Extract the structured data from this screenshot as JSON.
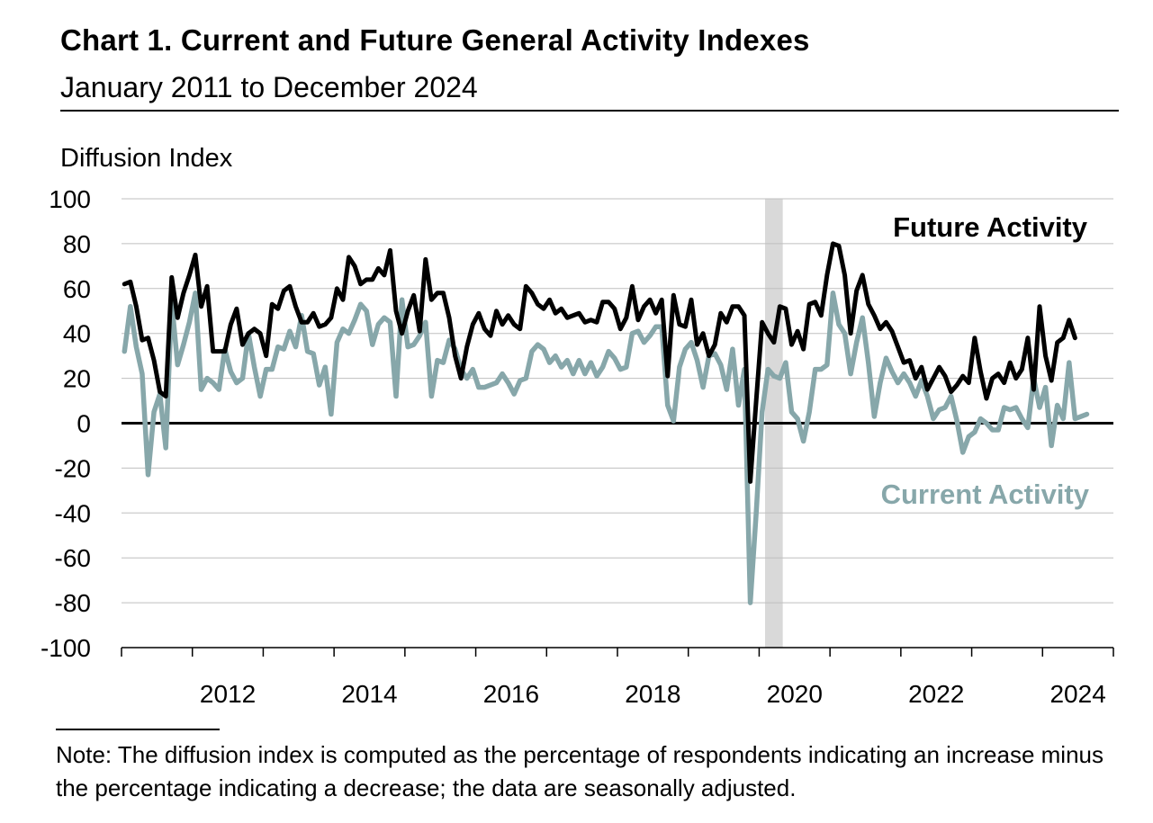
{
  "title": "Chart 1. Current and Future General Activity Indexes",
  "subtitle": "January 2011 to December 2024",
  "note": "Note: The diffusion index is computed as the percentage of respondents indicating an increase minus the percentage indicating a decrease; the data are seasonally adjusted.",
  "colors": {
    "future": "#000000",
    "current": "#87a7aa",
    "recession": "#d9d9d9",
    "zero_line": "#000000"
  },
  "chart_data": {
    "type": "line",
    "ylabel": "Diffusion Index",
    "ylim": [
      -100,
      100
    ],
    "y_ticks": [
      "100",
      "80",
      "60",
      "40",
      "20",
      "0",
      "-20",
      "-40",
      "-60",
      "-80",
      "-100"
    ],
    "x_start": "2011-01",
    "x_end": "2024-12",
    "x_tick_labels": [
      "2012",
      "2014",
      "2016",
      "2018",
      "2020",
      "2022",
      "2024"
    ],
    "recession_shading": {
      "start": "2020-02",
      "end": "2020-04"
    },
    "zero_line": true,
    "series": [
      {
        "name": "Future Activity",
        "label": "Future Activity",
        "color": "#000000",
        "values": [
          62,
          63,
          52,
          37,
          38,
          28,
          14,
          12,
          65,
          47,
          58,
          66,
          75,
          52,
          61,
          32,
          32,
          32,
          44,
          51,
          35,
          40,
          42,
          40,
          30,
          53,
          51,
          59,
          61,
          52,
          45,
          45,
          49,
          43,
          44,
          47,
          60,
          55,
          74,
          70,
          62,
          64,
          64,
          69,
          66,
          77,
          50,
          40,
          50,
          57,
          41,
          73,
          55,
          58,
          58,
          47,
          30,
          20,
          34,
          44,
          49,
          42,
          39,
          50,
          44,
          48,
          44,
          42,
          61,
          58,
          53,
          51,
          55,
          49,
          51,
          47,
          48,
          49,
          45,
          46,
          45,
          54,
          54,
          51,
          42,
          47,
          61,
          46,
          52,
          55,
          49,
          55,
          21,
          57,
          44,
          43,
          55,
          35,
          40,
          30,
          35,
          49,
          45,
          52,
          52,
          48,
          -26,
          10,
          45,
          40,
          36,
          52,
          51,
          35,
          41,
          33,
          53,
          54,
          48,
          66,
          80,
          79,
          66,
          40,
          59,
          66,
          53,
          48,
          42,
          45,
          41,
          34,
          27,
          28,
          20,
          25,
          15,
          20,
          25,
          21,
          14,
          17,
          21,
          18,
          38,
          23,
          11,
          20,
          22,
          18,
          27,
          20,
          24,
          38,
          15,
          52,
          30,
          19,
          36,
          38,
          46,
          38
        ]
      },
      {
        "name": "Current Activity",
        "label": "Current Activity",
        "color": "#87a7aa",
        "values": [
          32,
          52,
          34,
          22,
          -23,
          5,
          13,
          -11,
          54,
          26,
          35,
          45,
          58,
          15,
          20,
          18,
          15,
          33,
          23,
          18,
          20,
          40,
          25,
          12,
          24,
          24,
          34,
          33,
          41,
          34,
          48,
          32,
          31,
          17,
          25,
          4,
          36,
          42,
          40,
          46,
          53,
          50,
          35,
          44,
          47,
          45,
          12,
          55,
          34,
          35,
          39,
          45,
          12,
          28,
          27,
          37,
          33,
          24,
          20,
          24,
          16,
          16,
          17,
          18,
          22,
          18,
          13,
          19,
          20,
          32,
          35,
          33,
          27,
          30,
          25,
          28,
          22,
          28,
          22,
          27,
          21,
          25,
          32,
          29,
          24,
          25,
          40,
          41,
          36,
          39,
          43,
          43,
          8,
          1,
          25,
          33,
          36,
          28,
          16,
          30,
          31,
          26,
          15,
          33,
          8,
          24,
          -80,
          -40,
          5,
          24,
          21,
          20,
          27,
          5,
          2,
          -8,
          5,
          24,
          24,
          26,
          58,
          44,
          40,
          22,
          36,
          47,
          27,
          3,
          18,
          29,
          23,
          18,
          22,
          18,
          12,
          19,
          12,
          2,
          6,
          7,
          12,
          1,
          -13,
          -6,
          -4,
          2,
          0,
          -3,
          -3,
          7,
          6,
          7,
          2,
          -2,
          20,
          7,
          16,
          -10,
          8,
          2,
          27,
          2,
          3,
          4
        ]
      }
    ]
  }
}
